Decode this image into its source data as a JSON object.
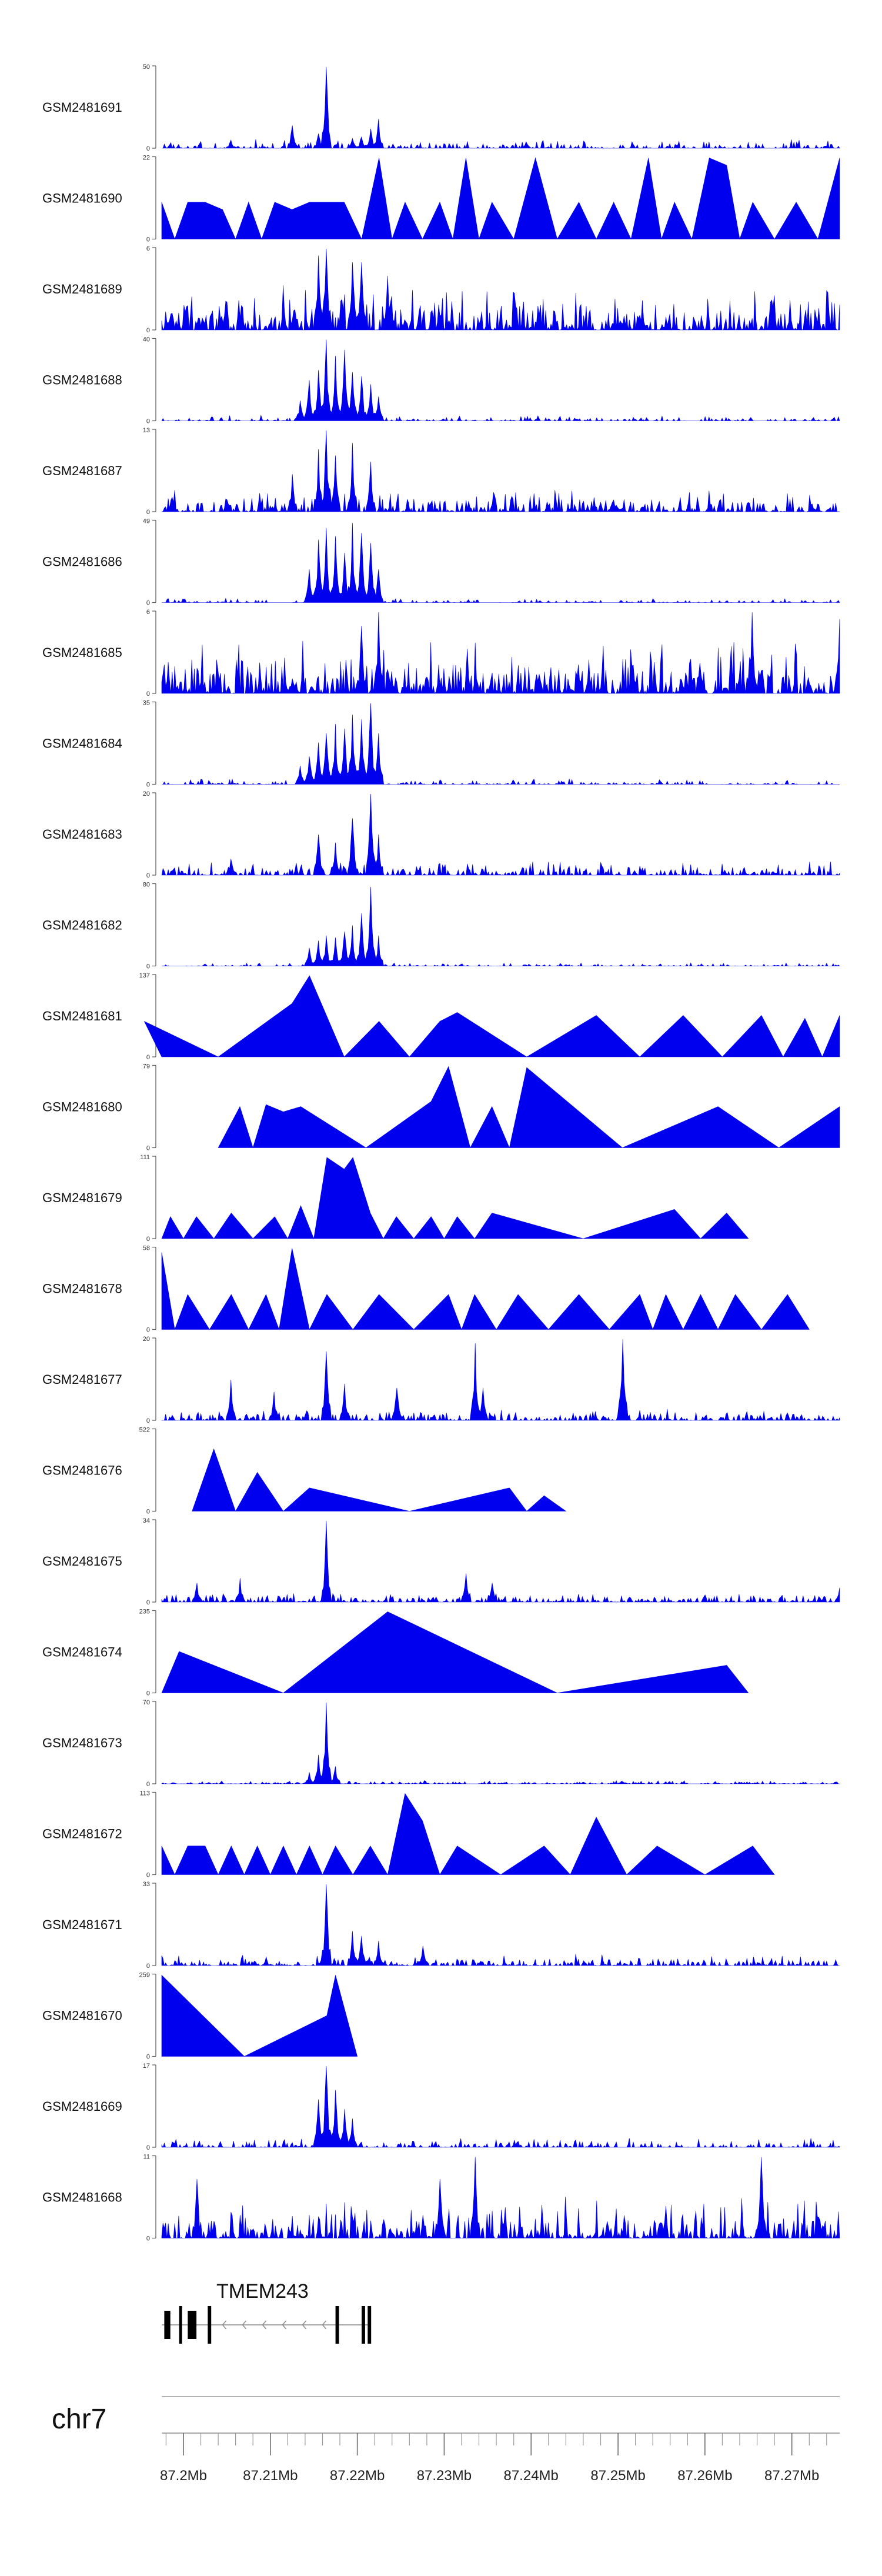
{
  "chart_data": {
    "type": "area",
    "title": "",
    "color": "#0000EE",
    "tracks": [
      {
        "name": "GSM2481691",
        "ymax": "50",
        "ymin": "0",
        "kind": "dense",
        "noise": 0.08,
        "density": 0.55,
        "peaks": [
          [
            87.2165,
            50
          ],
          [
            87.2125,
            14
          ],
          [
            87.2215,
            12
          ],
          [
            87.2225,
            18
          ],
          [
            87.2055,
            5
          ],
          [
            87.2205,
            7
          ],
          [
            87.2395,
            4
          ],
          [
            87.2195,
            6
          ],
          [
            87.2155,
            9
          ]
        ]
      },
      {
        "name": "GSM2481690",
        "ymax": "22",
        "ymin": "0",
        "kind": "sparse",
        "peaks": [
          [
            87.1975,
            10
          ],
          [
            87.2005,
            10
          ],
          [
            87.2025,
            10
          ],
          [
            87.2045,
            8
          ],
          [
            87.2075,
            10
          ],
          [
            87.2105,
            10
          ],
          [
            87.2125,
            8
          ],
          [
            87.2145,
            10
          ],
          [
            87.2165,
            10
          ],
          [
            87.2185,
            10
          ],
          [
            87.2225,
            22
          ],
          [
            87.2255,
            10
          ],
          [
            87.2295,
            10
          ],
          [
            87.2325,
            22
          ],
          [
            87.2355,
            10
          ],
          [
            87.2405,
            22
          ],
          [
            87.2455,
            10
          ],
          [
            87.2495,
            10
          ],
          [
            87.2535,
            22
          ],
          [
            87.2565,
            10
          ],
          [
            87.2605,
            22
          ],
          [
            87.2625,
            20
          ],
          [
            87.2655,
            10
          ],
          [
            87.2705,
            10
          ],
          [
            87.2755,
            22
          ]
        ]
      },
      {
        "name": "GSM2481689",
        "ymax": "6",
        "ymin": "0",
        "kind": "dense",
        "noise": 0.4,
        "density": 0.85,
        "peaks": [
          [
            87.2155,
            5.5
          ],
          [
            87.2195,
            5
          ],
          [
            87.2165,
            6
          ],
          [
            87.2205,
            5
          ],
          [
            87.2235,
            4
          ]
        ]
      },
      {
        "name": "GSM2481688",
        "ymax": "40",
        "ymin": "0",
        "kind": "dense",
        "noise": 0.05,
        "density": 0.5,
        "peaks": [
          [
            87.2145,
            20
          ],
          [
            87.2155,
            25
          ],
          [
            87.2165,
            40
          ],
          [
            87.2175,
            32
          ],
          [
            87.2185,
            35
          ],
          [
            87.2195,
            24
          ],
          [
            87.2205,
            22
          ],
          [
            87.2215,
            18
          ],
          [
            87.2135,
            10
          ],
          [
            87.2225,
            12
          ]
        ]
      },
      {
        "name": "GSM2481687",
        "ymax": "13",
        "ymin": "0",
        "kind": "dense",
        "noise": 0.2,
        "density": 0.75,
        "peaks": [
          [
            87.2155,
            10
          ],
          [
            87.2165,
            13
          ],
          [
            87.2175,
            9
          ],
          [
            87.2195,
            11
          ],
          [
            87.2125,
            6
          ],
          [
            87.2215,
            8
          ]
        ]
      },
      {
        "name": "GSM2481686",
        "ymax": "49",
        "ymin": "0",
        "kind": "dense",
        "noise": 0.04,
        "density": 0.4,
        "peaks": [
          [
            87.2145,
            20
          ],
          [
            87.2155,
            38
          ],
          [
            87.2165,
            45
          ],
          [
            87.2175,
            40
          ],
          [
            87.2185,
            30
          ],
          [
            87.2195,
            48
          ],
          [
            87.2205,
            42
          ],
          [
            87.2215,
            36
          ],
          [
            87.2225,
            20
          ]
        ]
      },
      {
        "name": "GSM2481685",
        "ymax": "6",
        "ymin": "0",
        "kind": "dense",
        "noise": 0.45,
        "density": 0.9,
        "peaks": [
          [
            87.2225,
            6
          ],
          [
            87.2205,
            5
          ],
          [
            87.2655,
            6
          ],
          [
            87.2755,
            5.5
          ]
        ]
      },
      {
        "name": "GSM2481684",
        "ymax": "35",
        "ymin": "0",
        "kind": "dense",
        "noise": 0.05,
        "density": 0.45,
        "peaks": [
          [
            87.2135,
            8
          ],
          [
            87.2145,
            12
          ],
          [
            87.2155,
            18
          ],
          [
            87.2165,
            22
          ],
          [
            87.2175,
            26
          ],
          [
            87.2185,
            24
          ],
          [
            87.2195,
            30
          ],
          [
            87.2205,
            28
          ],
          [
            87.2215,
            35
          ],
          [
            87.2225,
            22
          ]
        ]
      },
      {
        "name": "GSM2481683",
        "ymax": "20",
        "ymin": "0",
        "kind": "dense",
        "noise": 0.12,
        "density": 0.7,
        "peaks": [
          [
            87.2155,
            10
          ],
          [
            87.2175,
            8
          ],
          [
            87.2195,
            14
          ],
          [
            87.2215,
            20
          ],
          [
            87.2225,
            10
          ],
          [
            87.2055,
            4
          ]
        ]
      },
      {
        "name": "GSM2481682",
        "ymax": "80",
        "ymin": "0",
        "kind": "dense",
        "noise": 0.03,
        "density": 0.5,
        "peaks": [
          [
            87.2145,
            18
          ],
          [
            87.2155,
            25
          ],
          [
            87.2165,
            30
          ],
          [
            87.2175,
            28
          ],
          [
            87.2185,
            34
          ],
          [
            87.2195,
            40
          ],
          [
            87.2205,
            52
          ],
          [
            87.2215,
            78
          ],
          [
            87.2225,
            30
          ]
        ]
      },
      {
        "name": "GSM2481681",
        "ymax": "137",
        "ymin": "0",
        "kind": "sparse",
        "peaks": [
          [
            87.1955,
            60
          ],
          [
            87.2125,
            90
          ],
          [
            87.2145,
            137
          ],
          [
            87.2225,
            60
          ],
          [
            87.2295,
            60
          ],
          [
            87.2315,
            75
          ],
          [
            87.2475,
            70
          ],
          [
            87.2575,
            70
          ],
          [
            87.2665,
            70
          ],
          [
            87.2715,
            65
          ],
          [
            87.2755,
            70
          ]
        ]
      },
      {
        "name": "GSM2481680",
        "ymax": "79",
        "ymin": "0",
        "kind": "sparse",
        "peaks": [
          [
            87.2065,
            40
          ],
          [
            87.2095,
            42
          ],
          [
            87.2115,
            35
          ],
          [
            87.2135,
            40
          ],
          [
            87.2285,
            45
          ],
          [
            87.2305,
            79
          ],
          [
            87.2355,
            40
          ],
          [
            87.2395,
            78
          ],
          [
            87.2615,
            40
          ],
          [
            87.2755,
            40
          ]
        ]
      },
      {
        "name": "GSM2481679",
        "ymax": "111",
        "ymin": "0",
        "kind": "sparse",
        "peaks": [
          [
            87.1985,
            30
          ],
          [
            87.2015,
            30
          ],
          [
            87.2055,
            35
          ],
          [
            87.2105,
            30
          ],
          [
            87.2135,
            45
          ],
          [
            87.2165,
            111
          ],
          [
            87.2185,
            95
          ],
          [
            87.2195,
            111
          ],
          [
            87.2215,
            35
          ],
          [
            87.2245,
            30
          ],
          [
            87.2285,
            30
          ],
          [
            87.2315,
            30
          ],
          [
            87.2355,
            35
          ],
          [
            87.2565,
            40
          ],
          [
            87.2625,
            35
          ]
        ]
      },
      {
        "name": "GSM2481678",
        "ymax": "58",
        "ymin": "0",
        "kind": "sparse",
        "peaks": [
          [
            87.1975,
            55
          ],
          [
            87.2005,
            25
          ],
          [
            87.2055,
            25
          ],
          [
            87.2095,
            25
          ],
          [
            87.2125,
            58
          ],
          [
            87.2165,
            25
          ],
          [
            87.2225,
            25
          ],
          [
            87.2305,
            25
          ],
          [
            87.2335,
            25
          ],
          [
            87.2385,
            25
          ],
          [
            87.2455,
            25
          ],
          [
            87.2525,
            25
          ],
          [
            87.2555,
            25
          ],
          [
            87.2595,
            25
          ],
          [
            87.2635,
            25
          ],
          [
            87.2695,
            25
          ]
        ]
      },
      {
        "name": "GSM2481677",
        "ymax": "20",
        "ymin": "0",
        "kind": "dense",
        "noise": 0.1,
        "density": 0.75,
        "peaks": [
          [
            87.2055,
            10
          ],
          [
            87.2165,
            17
          ],
          [
            87.2185,
            9
          ],
          [
            87.2335,
            19
          ],
          [
            87.2345,
            8
          ],
          [
            87.2505,
            20
          ],
          [
            87.2105,
            7
          ],
          [
            87.2245,
            8
          ]
        ]
      },
      {
        "name": "GSM2481676",
        "ymax": "522",
        "ymin": "0",
        "kind": "sparse",
        "peaks": [
          [
            87.2035,
            400
          ],
          [
            87.2085,
            250
          ],
          [
            87.2145,
            150
          ],
          [
            87.2375,
            150
          ],
          [
            87.2415,
            100
          ]
        ]
      },
      {
        "name": "GSM2481675",
        "ymax": "34",
        "ymin": "0",
        "kind": "dense",
        "noise": 0.08,
        "density": 0.7,
        "peaks": [
          [
            87.2165,
            34
          ],
          [
            87.2015,
            8
          ],
          [
            87.2065,
            10
          ],
          [
            87.2325,
            12
          ],
          [
            87.2355,
            8
          ],
          [
            87.2755,
            6
          ]
        ]
      },
      {
        "name": "GSM2481674",
        "ymax": "235",
        "ymin": "0",
        "kind": "sparse",
        "peaks": [
          [
            87.1995,
            120
          ],
          [
            87.2235,
            235
          ],
          [
            87.2625,
            80
          ]
        ]
      },
      {
        "name": "GSM2481673",
        "ymax": "70",
        "ymin": "0",
        "kind": "dense",
        "noise": 0.03,
        "density": 0.6,
        "peaks": [
          [
            87.2165,
            70
          ],
          [
            87.2155,
            25
          ],
          [
            87.2175,
            15
          ],
          [
            87.2145,
            10
          ]
        ]
      },
      {
        "name": "GSM2481672",
        "ymax": "113",
        "ymin": "0",
        "kind": "sparse",
        "peaks": [
          [
            87.1975,
            40
          ],
          [
            87.2005,
            40
          ],
          [
            87.2025,
            40
          ],
          [
            87.2055,
            40
          ],
          [
            87.2085,
            40
          ],
          [
            87.2115,
            40
          ],
          [
            87.2145,
            40
          ],
          [
            87.2175,
            40
          ],
          [
            87.2215,
            40
          ],
          [
            87.2255,
            113
          ],
          [
            87.2275,
            75
          ],
          [
            87.2315,
            40
          ],
          [
            87.2415,
            40
          ],
          [
            87.2475,
            80
          ],
          [
            87.2545,
            40
          ],
          [
            87.2655,
            40
          ]
        ]
      },
      {
        "name": "GSM2481671",
        "ymax": "33",
        "ymin": "0",
        "kind": "dense",
        "noise": 0.1,
        "density": 0.7,
        "peaks": [
          [
            87.2165,
            33
          ],
          [
            87.2195,
            14
          ],
          [
            87.2205,
            12
          ],
          [
            87.2225,
            10
          ],
          [
            87.2275,
            8
          ]
        ]
      },
      {
        "name": "GSM2481670",
        "ymax": "259",
        "ymin": "0",
        "kind": "sparse",
        "peaks": [
          [
            87.1975,
            259
          ],
          [
            87.2165,
            130
          ],
          [
            87.2175,
            259
          ]
        ]
      },
      {
        "name": "GSM2481669",
        "ymax": "17",
        "ymin": "0",
        "kind": "dense",
        "noise": 0.08,
        "density": 0.6,
        "peaks": [
          [
            87.2165,
            17
          ],
          [
            87.2155,
            10
          ],
          [
            87.2175,
            12
          ],
          [
            87.2185,
            8
          ],
          [
            87.2195,
            6
          ]
        ]
      },
      {
        "name": "GSM2481668",
        "ymax": "11",
        "ymin": "0",
        "kind": "dense",
        "noise": 0.35,
        "density": 0.8,
        "peaks": [
          [
            87.2335,
            11
          ],
          [
            87.2665,
            11
          ],
          [
            87.2015,
            8
          ],
          [
            87.2295,
            8
          ]
        ]
      }
    ],
    "gene": {
      "name": "TMEM243",
      "start": 87.1975,
      "end": 87.2215,
      "exons": [
        [
          87.1978,
          87.1985
        ],
        [
          87.1995,
          87.1998
        ],
        [
          87.2005,
          87.2015
        ],
        [
          87.2028,
          87.2032
        ],
        [
          87.2175,
          87.2179
        ],
        [
          87.2205,
          87.2209
        ],
        [
          87.2212,
          87.2216
        ]
      ]
    },
    "axis": {
      "chromosome": "chr7",
      "xlim": [
        87.1975,
        87.2755
      ],
      "ticks": [
        "87.2Mb",
        "87.21Mb",
        "87.22Mb",
        "87.23Mb",
        "87.24Mb",
        "87.25Mb",
        "87.26Mb",
        "87.27Mb"
      ],
      "tick_values": [
        87.2,
        87.21,
        87.22,
        87.23,
        87.24,
        87.25,
        87.26,
        87.27
      ],
      "minor_step": 0.002
    }
  }
}
